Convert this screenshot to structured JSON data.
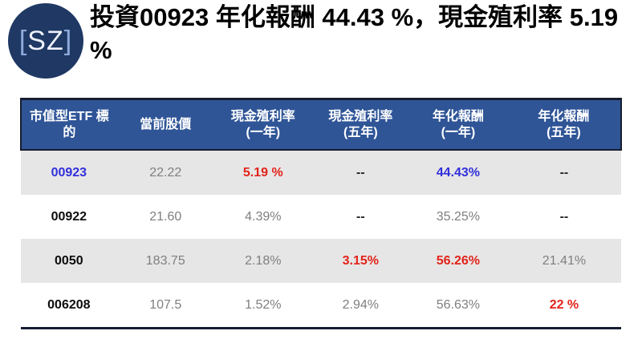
{
  "logo": {
    "bracket_left": "[",
    "letters": "SZ",
    "bracket_right": "]"
  },
  "title": "投資00923 年化報酬 44.43 %，現金殖利率 5.19 %",
  "colors": {
    "header_bg": "#2F5597",
    "header_text": "#FFFFFF",
    "border_dark": "#161D2F",
    "row_shade": "#E7E6E6",
    "blue": "#3030DC",
    "red": "#E2231A",
    "gray": "#7F7F7F",
    "dark_dash": "#262626",
    "black": "#0D0D0D",
    "logo_bg": "#1F3864",
    "logo_bracket": "#8FAADC",
    "logo_letters": "#EDF2FB"
  },
  "table": {
    "headers": [
      {
        "label": "市值型ETF 標的",
        "sub": ""
      },
      {
        "label": "當前股價",
        "sub": ""
      },
      {
        "label": "現金殖利率",
        "sub": "(一年)"
      },
      {
        "label": "現金殖利率",
        "sub": "(五年)"
      },
      {
        "label": "年化報酬",
        "sub": "(一年)"
      },
      {
        "label": "年化報酬",
        "sub": "(五年)"
      }
    ],
    "rows": [
      {
        "shaded": true,
        "cells": [
          {
            "text": "00923",
            "color": "blue",
            "bold": true
          },
          {
            "text": "22.22",
            "color": "gray",
            "bold": false
          },
          {
            "text": "5.19 %",
            "color": "red",
            "bold": true
          },
          {
            "text": "--",
            "color": "dark",
            "bold": true
          },
          {
            "text": "44.43%",
            "color": "blue",
            "bold": true
          },
          {
            "text": "--",
            "color": "dark",
            "bold": true
          }
        ]
      },
      {
        "shaded": false,
        "cells": [
          {
            "text": "00922",
            "color": "black",
            "bold": true
          },
          {
            "text": "21.60",
            "color": "gray",
            "bold": false
          },
          {
            "text": "4.39%",
            "color": "gray",
            "bold": false
          },
          {
            "text": "--",
            "color": "dark",
            "bold": true
          },
          {
            "text": "35.25%",
            "color": "gray",
            "bold": false
          },
          {
            "text": "--",
            "color": "dark",
            "bold": true
          }
        ]
      },
      {
        "shaded": true,
        "cells": [
          {
            "text": "0050",
            "color": "black",
            "bold": true
          },
          {
            "text": "183.75",
            "color": "gray",
            "bold": false
          },
          {
            "text": "2.18%",
            "color": "gray",
            "bold": false
          },
          {
            "text": "3.15%",
            "color": "red",
            "bold": true
          },
          {
            "text": "56.26%",
            "color": "red",
            "bold": true
          },
          {
            "text": "21.41%",
            "color": "gray",
            "bold": false
          }
        ]
      },
      {
        "shaded": false,
        "cells": [
          {
            "text": "006208",
            "color": "black",
            "bold": true
          },
          {
            "text": "107.5",
            "color": "gray",
            "bold": false
          },
          {
            "text": "1.52%",
            "color": "gray",
            "bold": false
          },
          {
            "text": "2.94%",
            "color": "gray",
            "bold": false
          },
          {
            "text": "56.63%",
            "color": "gray",
            "bold": false
          },
          {
            "text": "22 %",
            "color": "red",
            "bold": true
          }
        ]
      }
    ]
  }
}
